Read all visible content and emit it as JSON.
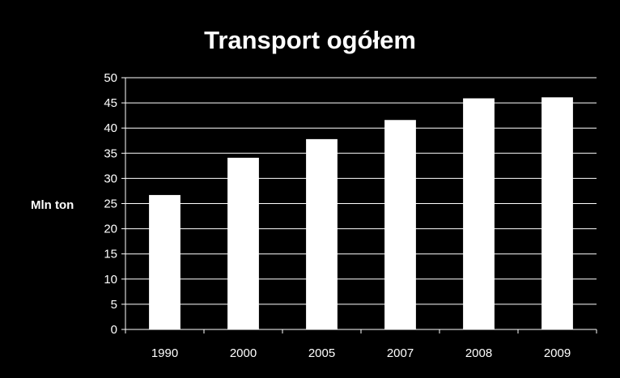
{
  "chart_data": {
    "type": "bar",
    "title": "Transport ogółem",
    "ylabel": "Mln ton",
    "xlabel": "",
    "categories": [
      "1990",
      "2000",
      "2005",
      "2007",
      "2008",
      "2009"
    ],
    "values": [
      26.7,
      34.1,
      37.8,
      41.6,
      45.9,
      46.1
    ],
    "ylim": [
      0,
      50
    ],
    "ytick_step": 5,
    "grid": true,
    "legend": "none",
    "colors": {
      "background": "#000000",
      "bar": "#ffffff",
      "text": "#ffffff",
      "grid": "#ffffff"
    }
  }
}
